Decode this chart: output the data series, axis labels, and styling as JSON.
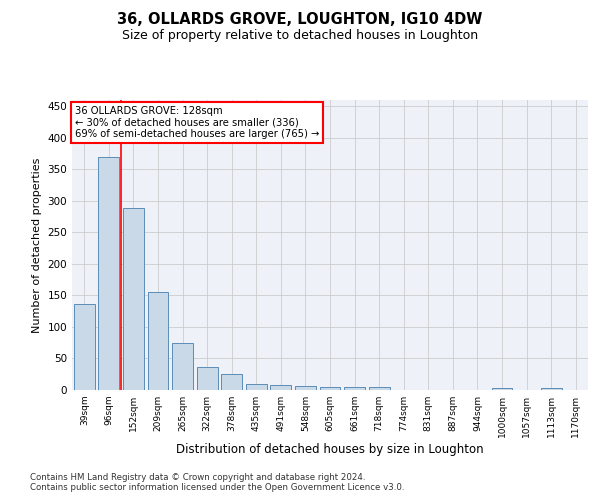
{
  "title1": "36, OLLARDS GROVE, LOUGHTON, IG10 4DW",
  "title2": "Size of property relative to detached houses in Loughton",
  "xlabel": "Distribution of detached houses by size in Loughton",
  "ylabel": "Number of detached properties",
  "categories": [
    "39sqm",
    "96sqm",
    "152sqm",
    "209sqm",
    "265sqm",
    "322sqm",
    "378sqm",
    "435sqm",
    "491sqm",
    "548sqm",
    "605sqm",
    "661sqm",
    "718sqm",
    "774sqm",
    "831sqm",
    "887sqm",
    "944sqm",
    "1000sqm",
    "1057sqm",
    "1113sqm",
    "1170sqm"
  ],
  "values": [
    136,
    370,
    288,
    155,
    74,
    37,
    25,
    10,
    8,
    6,
    4,
    4,
    4,
    0,
    0,
    0,
    0,
    3,
    0,
    3,
    0
  ],
  "bar_color": "#c9d9e8",
  "bar_edge_color": "#5b8db8",
  "grid_color": "#cccccc",
  "vline_color": "red",
  "annotation_text": "36 OLLARDS GROVE: 128sqm\n← 30% of detached houses are smaller (336)\n69% of semi-detached houses are larger (765) →",
  "annotation_box_color": "white",
  "annotation_box_edge": "red",
  "ylim": [
    0,
    460
  ],
  "yticks": [
    0,
    50,
    100,
    150,
    200,
    250,
    300,
    350,
    400,
    450
  ],
  "footer1": "Contains HM Land Registry data © Crown copyright and database right 2024.",
  "footer2": "Contains public sector information licensed under the Open Government Licence v3.0.",
  "bg_color": "#eef2f8"
}
